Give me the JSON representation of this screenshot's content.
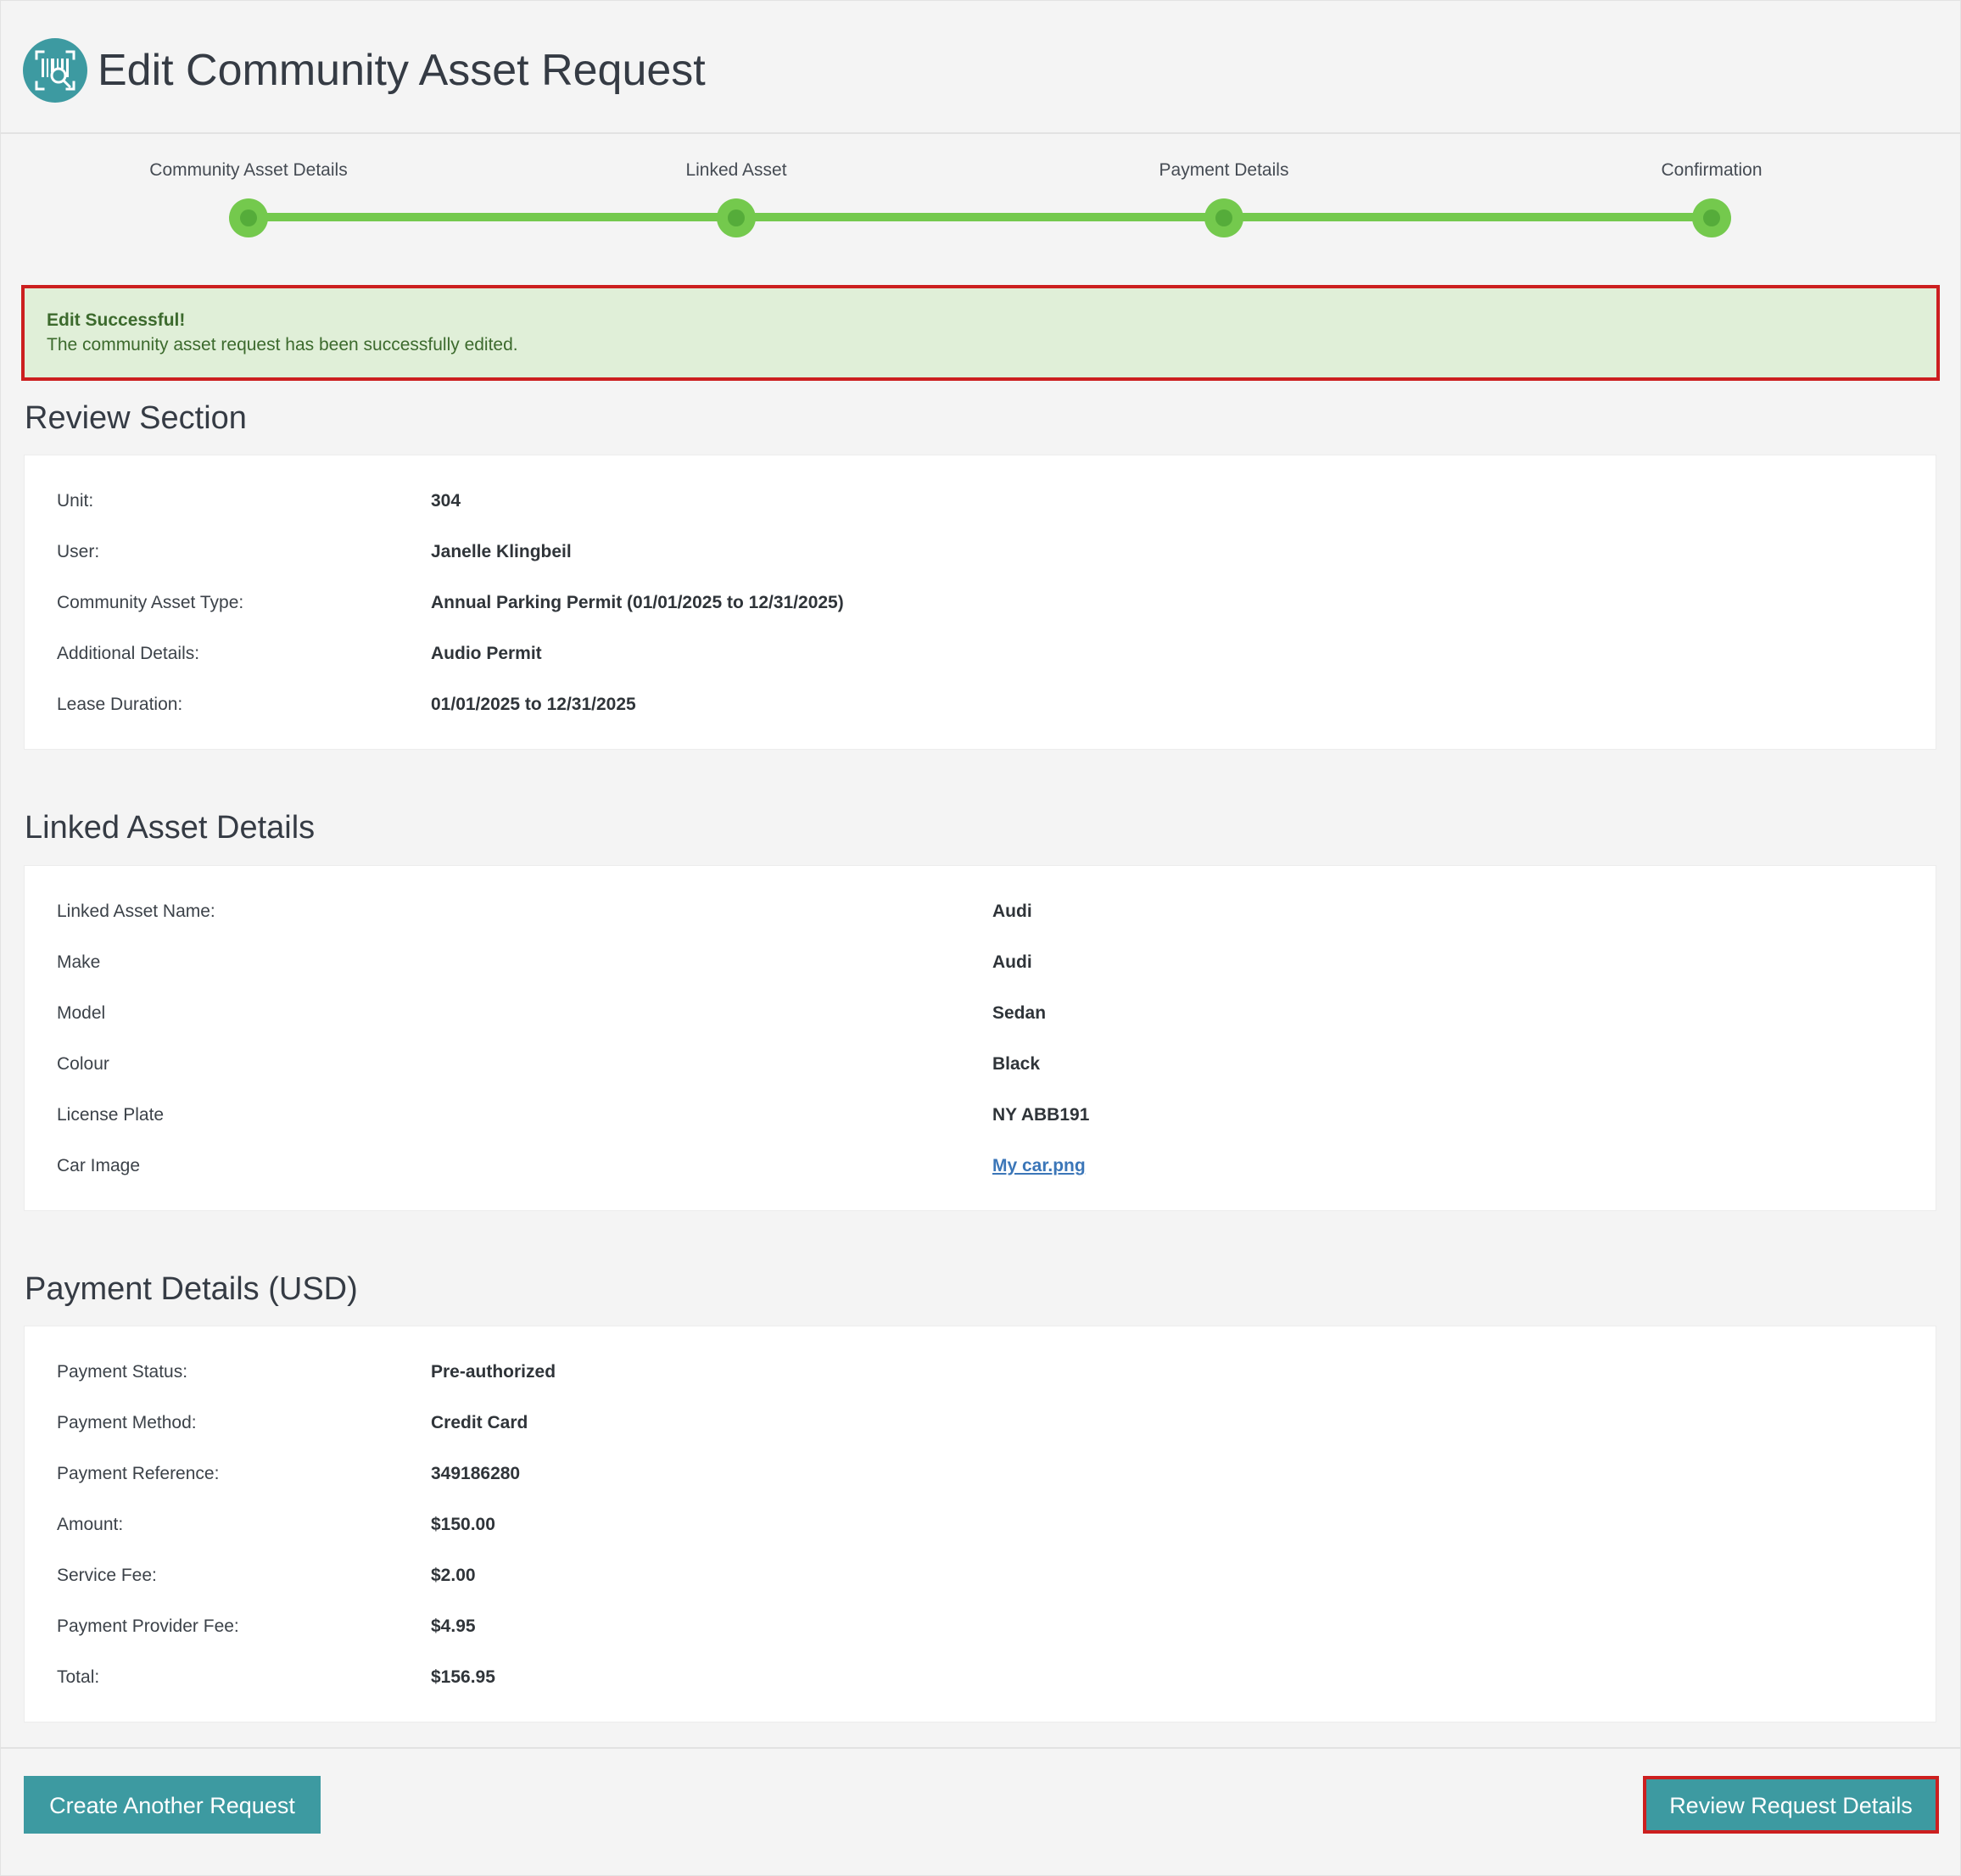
{
  "header": {
    "title": "Edit Community Asset Request",
    "logo_icon": "barcode-scan-icon",
    "accent_color": "#3d9aa1"
  },
  "stepper": {
    "steps": [
      {
        "label": "Community Asset Details"
      },
      {
        "label": "Linked Asset"
      },
      {
        "label": "Payment Details"
      },
      {
        "label": "Confirmation"
      }
    ],
    "progress_color": "#74c94d"
  },
  "alert": {
    "title": "Edit Successful!",
    "message": "The community asset request has been successfully edited."
  },
  "review_section": {
    "title": "Review Section",
    "rows": [
      {
        "label": "Unit:",
        "value": "304"
      },
      {
        "label": "User:",
        "value": "Janelle Klingbeil"
      },
      {
        "label": "Community Asset Type:",
        "value": "Annual Parking Permit (01/01/2025 to 12/31/2025)"
      },
      {
        "label": "Additional Details:",
        "value": "Audio Permit"
      },
      {
        "label": "Lease Duration:",
        "value": "01/01/2025 to 12/31/2025"
      }
    ]
  },
  "linked_asset": {
    "title": "Linked Asset Details",
    "rows": [
      {
        "label": "Linked Asset Name:",
        "value": "Audi"
      },
      {
        "label": "Make",
        "value": "Audi"
      },
      {
        "label": "Model",
        "value": "Sedan"
      },
      {
        "label": "Colour",
        "value": "Black"
      },
      {
        "label": "License Plate",
        "value": "NY ABB191"
      },
      {
        "label": "Car Image",
        "value": "My car.png"
      }
    ]
  },
  "payment": {
    "title": "Payment Details (USD)",
    "rows": [
      {
        "label": "Payment Status:",
        "value": "Pre-authorized"
      },
      {
        "label": "Payment Method:",
        "value": "Credit Card"
      },
      {
        "label": "Payment Reference:",
        "value": "349186280"
      },
      {
        "label": "Amount:",
        "value": "$150.00"
      },
      {
        "label": "Service Fee:",
        "value": "$2.00"
      },
      {
        "label": "Payment Provider Fee:",
        "value": "$4.95"
      },
      {
        "label": "Total:",
        "value": "$156.95"
      }
    ]
  },
  "footer": {
    "create_label": "Create Another Request",
    "review_label": "Review Request Details"
  }
}
